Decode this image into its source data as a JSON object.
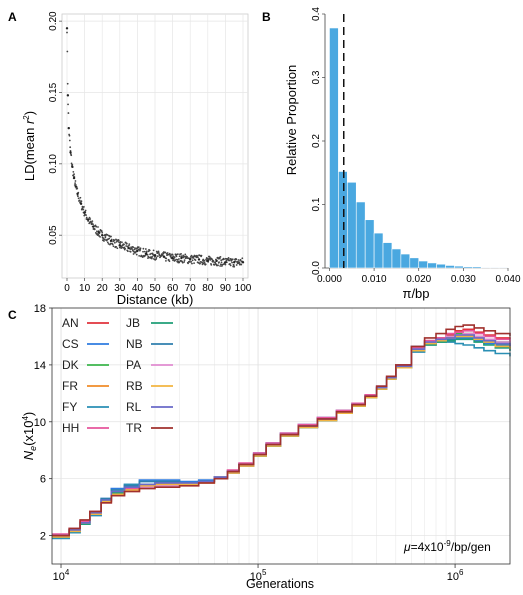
{
  "panels": {
    "a": "A",
    "b": "B",
    "c": "C"
  },
  "chart_data": [
    {
      "panel": "A",
      "type": "scatter",
      "xlabel": "Distance (kb)",
      "ylabel_main": "LD(mean ",
      "ylabel_var": "r",
      "ylabel_sup": "2",
      "ylabel_end": ")",
      "xlim": [
        0,
        100
      ],
      "ylim": [
        0.02,
        0.205
      ],
      "xticks": [
        0,
        10,
        20,
        30,
        40,
        50,
        60,
        70,
        80,
        90,
        100
      ],
      "yticks": [
        0.05,
        0.1,
        0.15,
        0.2
      ],
      "ytick_labels": [
        "0.05",
        "0.10",
        "0.15",
        "0.20"
      ],
      "grid": true,
      "color": "#444444",
      "model": "mean r2 decays from about 0.195 at 0 kb to about 0.03 at 100 kb",
      "x": [
        0,
        0.5,
        1,
        2,
        3,
        4,
        5,
        6,
        8,
        10,
        12,
        15,
        18,
        20,
        25,
        30,
        35,
        40,
        45,
        50,
        55,
        60,
        65,
        70,
        75,
        80,
        85,
        90,
        95,
        100
      ],
      "y": [
        0.195,
        0.148,
        0.125,
        0.108,
        0.098,
        0.09,
        0.084,
        0.079,
        0.072,
        0.066,
        0.061,
        0.056,
        0.052,
        0.05,
        0.046,
        0.043,
        0.041,
        0.039,
        0.037,
        0.036,
        0.035,
        0.034,
        0.034,
        0.033,
        0.033,
        0.032,
        0.032,
        0.031,
        0.031,
        0.031
      ]
    },
    {
      "panel": "B",
      "type": "bar",
      "xlabel": "π/bp",
      "ylabel": "Relative Proportion",
      "xlim": [
        -0.001,
        0.04
      ],
      "ylim": [
        0,
        0.4
      ],
      "xticks": [
        0.0,
        0.01,
        0.02,
        0.03,
        0.04
      ],
      "xtick_labels": [
        "0.000",
        "0.010",
        "0.020",
        "0.030",
        "0.040"
      ],
      "yticks": [
        0.0,
        0.1,
        0.2,
        0.3,
        0.4
      ],
      "ytick_labels": [
        "0.0",
        "0.1",
        "0.2",
        "0.3",
        "0.4"
      ],
      "grid": false,
      "bar_color": "#4aa8e0",
      "bin_width": 0.002,
      "bin_starts": [
        0.0,
        0.002,
        0.004,
        0.006,
        0.008,
        0.01,
        0.012,
        0.014,
        0.016,
        0.018,
        0.02,
        0.022,
        0.024,
        0.026,
        0.028,
        0.03,
        0.032,
        0.034,
        0.036,
        0.038
      ],
      "values": [
        0.378,
        0.152,
        0.135,
        0.104,
        0.076,
        0.055,
        0.04,
        0.03,
        0.022,
        0.016,
        0.011,
        0.008,
        0.006,
        0.004,
        0.003,
        0.002,
        0.002,
        0.001,
        0.001,
        0.001
      ],
      "dashed_line_x": 0.0032
    },
    {
      "panel": "C",
      "type": "line",
      "xlabel": "Generations",
      "ylabel_main": "N",
      "ylabel_sub": "e",
      "ylabel_rest": "(x10",
      "ylabel_sup": "4",
      "ylabel_end": ")",
      "x_scale": "log",
      "xlim": [
        9000,
        1900000
      ],
      "ylim": [
        0,
        18
      ],
      "xticks": [
        10000,
        100000,
        1000000
      ],
      "xtick_base": "10",
      "xtick_exponents": [
        "4",
        "5",
        "6"
      ],
      "yticks": [
        2,
        6,
        10,
        14,
        18
      ],
      "ytick_labels": [
        "2",
        "6",
        "10",
        "14",
        "18"
      ],
      "grid": true,
      "annotation_mu": "μ",
      "annotation_eq": "=4x10",
      "annotation_exp": "-9",
      "annotation_rest": "/bp/gen",
      "x": [
        9000,
        11000,
        12500,
        14000,
        16000,
        18000,
        21000,
        25000,
        30000,
        40000,
        50000,
        60000,
        70000,
        80000,
        95000,
        110000,
        130000,
        160000,
        200000,
        250000,
        300000,
        350000,
        400000,
        450000,
        500000,
        600000,
        700000,
        800000,
        900000,
        1000000,
        1100000,
        1250000,
        1400000,
        1600000,
        1900000
      ],
      "series": [
        {
          "name": "AN",
          "color": "#e0323c",
          "values": [
            2.0,
            2.4,
            3.0,
            3.6,
            4.4,
            4.9,
            5.2,
            5.5,
            5.6,
            5.6,
            5.8,
            6.1,
            6.5,
            7.0,
            7.7,
            8.4,
            9.1,
            9.7,
            10.2,
            10.7,
            11.2,
            11.8,
            12.4,
            13.1,
            13.9,
            15.2,
            15.7,
            15.9,
            16.1,
            16.4,
            16.5,
            16.3,
            16.1,
            15.9,
            15.8
          ]
        },
        {
          "name": "CS",
          "color": "#2e7ce0",
          "values": [
            1.9,
            2.3,
            2.8,
            3.5,
            4.6,
            5.3,
            5.6,
            5.9,
            5.9,
            5.8,
            5.9,
            6.1,
            6.5,
            7.0,
            7.8,
            8.5,
            9.2,
            9.8,
            10.3,
            10.8,
            11.3,
            11.9,
            12.5,
            13.2,
            14.0,
            15.3,
            15.6,
            15.7,
            15.8,
            15.9,
            15.9,
            15.7,
            15.5,
            15.2,
            15.0
          ]
        },
        {
          "name": "DK",
          "color": "#3cb44b",
          "values": [
            2.0,
            2.4,
            2.9,
            3.6,
            4.5,
            5.0,
            5.3,
            5.5,
            5.6,
            5.7,
            5.8,
            6.1,
            6.4,
            7.0,
            7.7,
            8.4,
            9.1,
            9.7,
            10.2,
            10.7,
            11.2,
            11.8,
            12.4,
            13.1,
            13.9,
            15.1,
            15.5,
            15.8,
            16.0,
            16.2,
            16.2,
            16.0,
            15.8,
            15.6,
            15.4
          ]
        },
        {
          "name": "FR",
          "color": "#f08c28",
          "values": [
            1.9,
            2.3,
            2.9,
            3.5,
            4.3,
            4.8,
            5.1,
            5.4,
            5.5,
            5.6,
            5.7,
            6.0,
            6.4,
            6.9,
            7.6,
            8.3,
            9.0,
            9.6,
            10.1,
            10.6,
            11.1,
            11.7,
            12.3,
            13.0,
            13.8,
            15.0,
            15.5,
            15.7,
            15.9,
            16.0,
            16.1,
            15.9,
            15.7,
            15.4,
            15.3
          ]
        },
        {
          "name": "FY",
          "color": "#2a8fb4",
          "values": [
            1.8,
            2.2,
            2.8,
            3.4,
            4.5,
            5.2,
            5.6,
            5.8,
            5.8,
            5.7,
            5.8,
            6.0,
            6.4,
            6.9,
            7.6,
            8.3,
            9.0,
            9.6,
            10.1,
            10.6,
            11.1,
            11.7,
            12.3,
            13.0,
            13.8,
            14.9,
            15.4,
            15.6,
            15.6,
            15.5,
            15.4,
            15.2,
            15.0,
            14.8,
            14.6
          ]
        },
        {
          "name": "HH",
          "color": "#e6559c",
          "values": [
            2.1,
            2.5,
            3.0,
            3.7,
            4.4,
            4.9,
            5.3,
            5.5,
            5.6,
            5.6,
            5.8,
            6.1,
            6.6,
            7.1,
            7.8,
            8.5,
            9.2,
            9.8,
            10.3,
            10.8,
            11.3,
            11.9,
            12.5,
            13.2,
            14.0,
            15.2,
            15.7,
            15.9,
            16.2,
            16.3,
            16.4,
            16.2,
            16.0,
            15.8,
            15.6
          ]
        },
        {
          "name": "JB",
          "color": "#1f9e77",
          "values": [
            1.9,
            2.3,
            2.8,
            3.5,
            4.4,
            5.0,
            5.4,
            5.6,
            5.7,
            5.7,
            5.8,
            6.0,
            6.4,
            6.9,
            7.6,
            8.3,
            9.0,
            9.6,
            10.1,
            10.6,
            11.1,
            11.7,
            12.3,
            13.0,
            13.8,
            15.0,
            15.4,
            15.6,
            15.7,
            15.8,
            15.8,
            15.6,
            15.4,
            15.2,
            15.0
          ]
        },
        {
          "name": "NB",
          "color": "#2f7fae",
          "values": [
            2.0,
            2.4,
            2.9,
            3.6,
            4.6,
            5.2,
            5.5,
            5.8,
            5.8,
            5.7,
            5.8,
            6.1,
            6.5,
            7.0,
            7.7,
            8.4,
            9.1,
            9.7,
            10.2,
            10.7,
            11.2,
            11.8,
            12.4,
            13.1,
            13.9,
            15.1,
            15.5,
            15.7,
            15.8,
            16.0,
            16.0,
            15.8,
            15.6,
            15.4,
            15.2
          ]
        },
        {
          "name": "PA",
          "color": "#e08bd0",
          "values": [
            2.0,
            2.4,
            2.9,
            3.6,
            4.3,
            4.8,
            5.1,
            5.4,
            5.5,
            5.6,
            5.7,
            6.0,
            6.4,
            6.9,
            7.7,
            8.4,
            9.1,
            9.7,
            10.2,
            10.7,
            11.2,
            11.8,
            12.4,
            13.1,
            13.9,
            15.1,
            15.6,
            15.8,
            16.0,
            16.1,
            16.2,
            16.0,
            15.8,
            15.6,
            15.4
          ]
        },
        {
          "name": "RB",
          "color": "#f2b441",
          "values": [
            1.9,
            2.3,
            2.9,
            3.5,
            4.4,
            4.9,
            5.2,
            5.5,
            5.6,
            5.6,
            5.7,
            6.0,
            6.4,
            6.9,
            7.6,
            8.3,
            9.0,
            9.6,
            10.1,
            10.6,
            11.1,
            11.7,
            12.3,
            13.0,
            13.8,
            15.0,
            15.5,
            15.7,
            15.9,
            16.0,
            16.0,
            15.8,
            15.6,
            15.3,
            15.1
          ]
        },
        {
          "name": "RL",
          "color": "#6a6ac8",
          "values": [
            2.0,
            2.4,
            2.9,
            3.6,
            4.5,
            5.1,
            5.4,
            5.6,
            5.7,
            5.7,
            5.8,
            6.1,
            6.5,
            7.0,
            7.7,
            8.4,
            9.1,
            9.7,
            10.2,
            10.7,
            11.2,
            11.8,
            12.4,
            13.1,
            13.9,
            15.1,
            15.6,
            15.8,
            15.9,
            16.1,
            16.1,
            15.9,
            15.7,
            15.5,
            15.3
          ]
        },
        {
          "name": "TR",
          "color": "#a0312d",
          "values": [
            2.0,
            2.5,
            3.1,
            3.7,
            4.3,
            4.8,
            5.1,
            5.3,
            5.4,
            5.5,
            5.7,
            6.0,
            6.5,
            7.0,
            7.7,
            8.4,
            9.1,
            9.7,
            10.2,
            10.7,
            11.2,
            11.8,
            12.5,
            13.2,
            14.0,
            15.3,
            15.9,
            16.2,
            16.5,
            16.7,
            16.8,
            16.6,
            16.4,
            16.2,
            16.0
          ]
        }
      ]
    }
  ]
}
